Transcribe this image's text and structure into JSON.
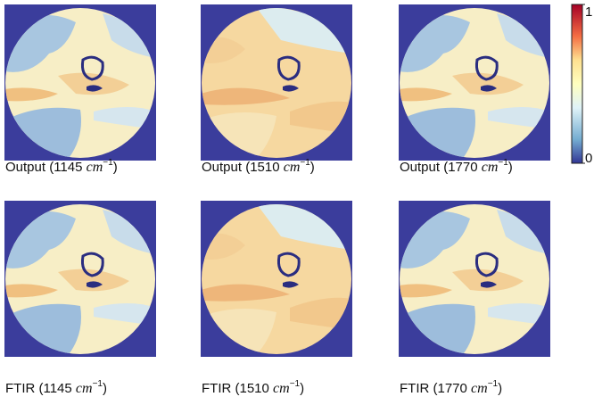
{
  "panels": [
    {
      "caption": {
        "text": "Output (1145",
        "unit": "cm",
        "exponent": "−1",
        "close": ")"
      }
    },
    {
      "caption": {
        "text": "Output (1510",
        "unit": "cm",
        "exponent": "−1",
        "close": ")"
      }
    },
    {
      "caption": {
        "text": "Output (1770",
        "unit": "cm",
        "exponent": "−1",
        "close": ")"
      }
    },
    {
      "caption": {
        "text": "FTIR (1145",
        "unit": "cm",
        "exponent": "−1",
        "close": ")"
      }
    },
    {
      "caption": {
        "text": "FTIR (1510",
        "unit": "cm",
        "exponent": "−1",
        "close": ")"
      }
    },
    {
      "caption": {
        "text": "FTIR (1770",
        "unit": "cm",
        "exponent": "−1",
        "close": ")"
      }
    }
  ],
  "colorbar": {
    "ticks": [
      0,
      1
    ]
  }
}
